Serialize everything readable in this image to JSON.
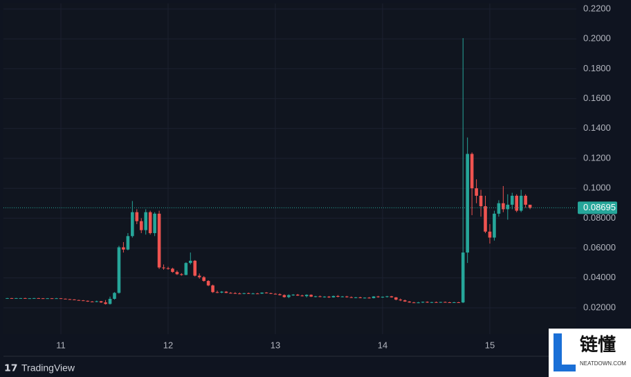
{
  "chart_data": {
    "type": "candlestick",
    "up_color": "#26a69a",
    "down_color": "#ef5350",
    "grid": true,
    "ylim": [
      0.0024,
      0.2237
    ],
    "yticks": [
      {
        "value": 0.02,
        "label": "0.02000"
      },
      {
        "value": 0.04,
        "label": "0.04000"
      },
      {
        "value": 0.06,
        "label": "0.06000"
      },
      {
        "value": 0.08,
        "label": "0.08000"
      },
      {
        "value": 0.1,
        "label": "0.1000"
      },
      {
        "value": 0.12,
        "label": "0.1200"
      },
      {
        "value": 0.14,
        "label": "0.1400"
      },
      {
        "value": 0.16,
        "label": "0.1600"
      },
      {
        "value": 0.18,
        "label": "0.1800"
      },
      {
        "value": 0.2,
        "label": "0.2000"
      },
      {
        "value": 0.22,
        "label": "0.2200"
      }
    ],
    "last_price": 0.08695,
    "categories": [
      null,
      null,
      null,
      null,
      null,
      null,
      null,
      null,
      null,
      null,
      null,
      null,
      "11",
      null,
      null,
      null,
      null,
      null,
      null,
      null,
      null,
      null,
      null,
      null,
      null,
      null,
      null,
      null,
      null,
      null,
      null,
      null,
      null,
      null,
      null,
      null,
      "12",
      null,
      null,
      null,
      null,
      null,
      null,
      null,
      null,
      null,
      null,
      null,
      null,
      null,
      null,
      null,
      null,
      null,
      null,
      null,
      null,
      null,
      null,
      null,
      "13",
      null,
      null,
      null,
      null,
      null,
      null,
      null,
      null,
      null,
      null,
      null,
      null,
      null,
      null,
      null,
      null,
      null,
      null,
      null,
      null,
      null,
      null,
      null,
      "14",
      null,
      null,
      null,
      null,
      null,
      null,
      null,
      null,
      null,
      null,
      null,
      null,
      null,
      null,
      null,
      null,
      null,
      null,
      null,
      null,
      null,
      null,
      null,
      "15",
      null,
      null,
      null,
      null,
      null,
      null,
      null,
      null,
      null
    ],
    "ohlc": [
      [
        0.0265,
        0.0266,
        0.0264,
        0.0265
      ],
      [
        0.0265,
        0.0266,
        0.0264,
        0.0264
      ],
      [
        0.0264,
        0.0266,
        0.0263,
        0.0265
      ],
      [
        0.0265,
        0.0266,
        0.0264,
        0.0265
      ],
      [
        0.0265,
        0.0267,
        0.0264,
        0.0264
      ],
      [
        0.0264,
        0.0265,
        0.0263,
        0.0264
      ],
      [
        0.0264,
        0.0266,
        0.0263,
        0.0265
      ],
      [
        0.0265,
        0.0266,
        0.0264,
        0.0264
      ],
      [
        0.0264,
        0.0265,
        0.0262,
        0.0263
      ],
      [
        0.0263,
        0.0265,
        0.0262,
        0.0264
      ],
      [
        0.0264,
        0.0265,
        0.0262,
        0.0263
      ],
      [
        0.0263,
        0.0266,
        0.0262,
        0.0264
      ],
      [
        0.0264,
        0.0265,
        0.026,
        0.0261
      ],
      [
        0.0261,
        0.0262,
        0.0257,
        0.0258
      ],
      [
        0.0258,
        0.026,
        0.0255,
        0.0256
      ],
      [
        0.0256,
        0.0257,
        0.0251,
        0.0252
      ],
      [
        0.0252,
        0.0254,
        0.0249,
        0.025
      ],
      [
        0.025,
        0.0252,
        0.0246,
        0.0247
      ],
      [
        0.0247,
        0.0249,
        0.024,
        0.0242
      ],
      [
        0.0242,
        0.0245,
        0.0238,
        0.024
      ],
      [
        0.024,
        0.0248,
        0.0237,
        0.0244
      ],
      [
        0.0244,
        0.0246,
        0.0233,
        0.0236
      ],
      [
        0.0236,
        0.0252,
        0.0222,
        0.0226
      ],
      [
        0.0226,
        0.0275,
        0.0222,
        0.026
      ],
      [
        0.026,
        0.0305,
        0.0255,
        0.03
      ],
      [
        0.03,
        0.0615,
        0.0295,
        0.0605
      ],
      [
        0.0605,
        0.064,
        0.057,
        0.059
      ],
      [
        0.059,
        0.07,
        0.0585,
        0.068
      ],
      [
        0.068,
        0.0915,
        0.067,
        0.084
      ],
      [
        0.084,
        0.086,
        0.076,
        0.078
      ],
      [
        0.078,
        0.08,
        0.07,
        0.072
      ],
      [
        0.072,
        0.086,
        0.069,
        0.084
      ],
      [
        0.084,
        0.085,
        0.069,
        0.07
      ],
      [
        0.07,
        0.084,
        0.068,
        0.083
      ],
      [
        0.083,
        0.085,
        0.046,
        0.047
      ],
      [
        0.047,
        0.049,
        0.0455,
        0.0465
      ],
      [
        0.0465,
        0.0475,
        0.0455,
        0.0462
      ],
      [
        0.0462,
        0.0468,
        0.0435,
        0.044
      ],
      [
        0.044,
        0.045,
        0.042,
        0.0425
      ],
      [
        0.0425,
        0.0432,
        0.0415,
        0.042
      ],
      [
        0.042,
        0.0505,
        0.0418,
        0.05
      ],
      [
        0.05,
        0.057,
        0.049,
        0.0515
      ],
      [
        0.0515,
        0.052,
        0.041,
        0.0415
      ],
      [
        0.0415,
        0.043,
        0.0395,
        0.0405
      ],
      [
        0.0405,
        0.0412,
        0.0375,
        0.038
      ],
      [
        0.038,
        0.0385,
        0.0345,
        0.035
      ],
      [
        0.035,
        0.0355,
        0.03,
        0.0305
      ],
      [
        0.0305,
        0.0315,
        0.0298,
        0.0302
      ],
      [
        0.0302,
        0.0312,
        0.0298,
        0.0308
      ],
      [
        0.0308,
        0.0312,
        0.0298,
        0.03
      ],
      [
        0.03,
        0.0305,
        0.0295,
        0.0298
      ],
      [
        0.0298,
        0.0305,
        0.0294,
        0.0296
      ],
      [
        0.0296,
        0.0302,
        0.0292,
        0.0295
      ],
      [
        0.0295,
        0.03,
        0.0291,
        0.0298
      ],
      [
        0.0298,
        0.0302,
        0.0293,
        0.0294
      ],
      [
        0.0294,
        0.03,
        0.0292,
        0.0296
      ],
      [
        0.0296,
        0.03,
        0.0293,
        0.0295
      ],
      [
        0.0295,
        0.0303,
        0.0293,
        0.0302
      ],
      [
        0.0302,
        0.0305,
        0.0296,
        0.0298
      ],
      [
        0.0298,
        0.0301,
        0.0292,
        0.0294
      ],
      [
        0.0294,
        0.0298,
        0.0289,
        0.0291
      ],
      [
        0.0291,
        0.0296,
        0.0283,
        0.0285
      ],
      [
        0.0285,
        0.029,
        0.0268,
        0.0272
      ],
      [
        0.0272,
        0.029,
        0.0265,
        0.0285
      ],
      [
        0.0285,
        0.0292,
        0.028,
        0.0288
      ],
      [
        0.0288,
        0.0293,
        0.028,
        0.0282
      ],
      [
        0.0282,
        0.0288,
        0.0276,
        0.0278
      ],
      [
        0.0278,
        0.029,
        0.027,
        0.0287
      ],
      [
        0.0287,
        0.029,
        0.0272,
        0.0275
      ],
      [
        0.0275,
        0.028,
        0.027,
        0.0277
      ],
      [
        0.0277,
        0.0282,
        0.0271,
        0.0273
      ],
      [
        0.0273,
        0.0278,
        0.0268,
        0.0275
      ],
      [
        0.0275,
        0.0279,
        0.0266,
        0.027
      ],
      [
        0.027,
        0.0282,
        0.0268,
        0.0279
      ],
      [
        0.0279,
        0.0285,
        0.027,
        0.0274
      ],
      [
        0.0274,
        0.0279,
        0.027,
        0.0276
      ],
      [
        0.0276,
        0.028,
        0.0268,
        0.0271
      ],
      [
        0.0271,
        0.0276,
        0.0266,
        0.0268
      ],
      [
        0.0268,
        0.0273,
        0.0264,
        0.027
      ],
      [
        0.027,
        0.0274,
        0.0264,
        0.0266
      ],
      [
        0.0266,
        0.027,
        0.0262,
        0.0268
      ],
      [
        0.0268,
        0.0272,
        0.0262,
        0.0265
      ],
      [
        0.0265,
        0.0278,
        0.0263,
        0.0276
      ],
      [
        0.0276,
        0.028,
        0.0268,
        0.0272
      ],
      [
        0.0272,
        0.0276,
        0.0266,
        0.0274
      ],
      [
        0.0274,
        0.028,
        0.0269,
        0.0277
      ],
      [
        0.0277,
        0.028,
        0.0268,
        0.027
      ],
      [
        0.027,
        0.0272,
        0.025,
        0.0255
      ],
      [
        0.0255,
        0.0262,
        0.0245,
        0.025
      ],
      [
        0.025,
        0.0255,
        0.024,
        0.0242
      ],
      [
        0.0242,
        0.0245,
        0.0234,
        0.0236
      ],
      [
        0.0236,
        0.024,
        0.0232,
        0.0235
      ],
      [
        0.0235,
        0.024,
        0.0231,
        0.0236
      ],
      [
        0.0236,
        0.0242,
        0.0232,
        0.024
      ],
      [
        0.024,
        0.0243,
        0.0233,
        0.0235
      ],
      [
        0.0235,
        0.024,
        0.0232,
        0.0238
      ],
      [
        0.0238,
        0.0242,
        0.0234,
        0.0236
      ],
      [
        0.0236,
        0.024,
        0.0233,
        0.0239
      ],
      [
        0.0239,
        0.0242,
        0.0235,
        0.0237
      ],
      [
        0.0237,
        0.024,
        0.0233,
        0.0236
      ],
      [
        0.0236,
        0.024,
        0.0233,
        0.0237
      ],
      [
        0.0237,
        0.024,
        0.0234,
        0.0236
      ],
      [
        0.0236,
        0.2005,
        0.0232,
        0.057
      ],
      [
        0.057,
        0.134,
        0.05,
        0.123
      ],
      [
        0.123,
        0.124,
        0.082,
        0.1
      ],
      [
        0.1,
        0.106,
        0.09,
        0.095
      ],
      [
        0.095,
        0.099,
        0.081,
        0.088
      ],
      [
        0.088,
        0.095,
        0.07,
        0.071
      ],
      [
        0.071,
        0.076,
        0.063,
        0.067
      ],
      [
        0.067,
        0.085,
        0.065,
        0.083
      ],
      [
        0.083,
        0.092,
        0.081,
        0.09
      ],
      [
        0.09,
        0.1015,
        0.084,
        0.086
      ],
      [
        0.086,
        0.096,
        0.079,
        0.089
      ],
      [
        0.089,
        0.097,
        0.086,
        0.095
      ],
      [
        0.095,
        0.096,
        0.084,
        0.085
      ],
      [
        0.085,
        0.099,
        0.084,
        0.095
      ],
      [
        0.095,
        0.096,
        0.087,
        0.089
      ],
      [
        0.089,
        0.089,
        0.086,
        0.08695
      ]
    ]
  },
  "branding": "TradingView",
  "watermark": {
    "title": "链懂",
    "subtitle": "NEATDOWN.COM"
  }
}
